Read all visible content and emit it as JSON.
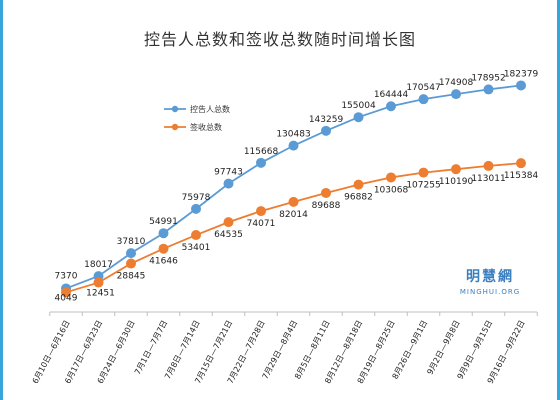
{
  "chart_data": {
    "type": "line",
    "title": "控告人总数和签收总数随时间增长图",
    "categories": [
      "6月10日—6月16日",
      "6月17日—6月23日",
      "6月24日—6月30日",
      "7月1日—7月7日",
      "7月8日—7月14日",
      "7月15日—7月21日",
      "7月22日—7月28日",
      "7月29日—8月4日",
      "8月5日—8月11日",
      "8月12日—8月18日",
      "8月19日—8月25日",
      "8月26日—9月1日",
      "9月2日—9月8日",
      "9月9日—9月15日",
      "9月16日—9月22日"
    ],
    "series": [
      {
        "name": "控告人总数",
        "color": "#5b9bd5",
        "values": [
          7370,
          18017,
          37810,
          54991,
          75978,
          97743,
          115668,
          130483,
          143259,
          155004,
          164444,
          170547,
          174908,
          178952,
          182379
        ]
      },
      {
        "name": "签收总数",
        "color": "#ed7d31",
        "values": [
          4049,
          12451,
          28845,
          41646,
          53401,
          64535,
          74071,
          82014,
          89688,
          96882,
          103068,
          107255,
          110190,
          113011,
          115384
        ]
      }
    ],
    "ylim": [
      0,
      200000
    ],
    "legend": "top-left",
    "grid": false
  },
  "watermark": {
    "line1": "明慧網",
    "line2": "MINGHUI.ORG"
  }
}
